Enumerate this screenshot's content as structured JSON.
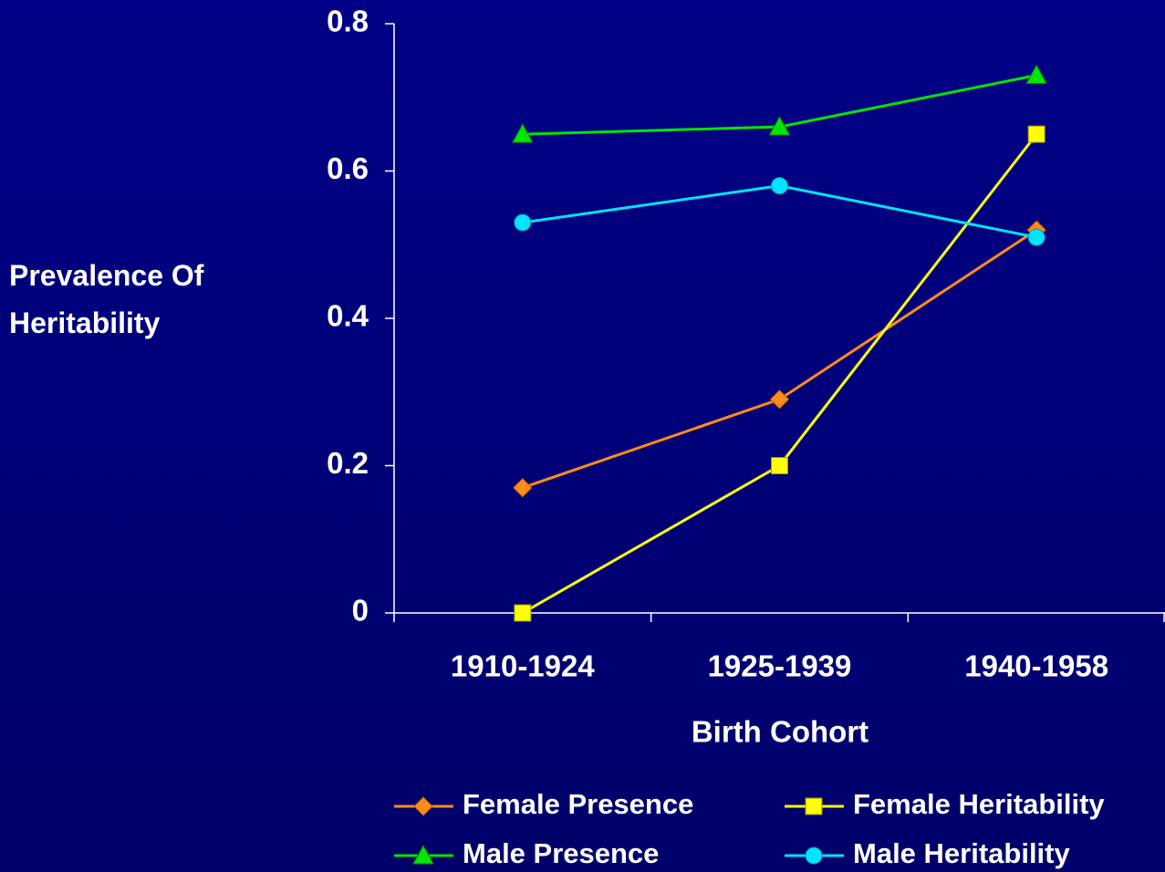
{
  "chart_data": {
    "type": "line",
    "xlabel": "Birth Cohort",
    "ylabel": "Prevalence Of Heritability",
    "categories": [
      "1910-1924",
      "1925-1939",
      "1940-1958"
    ],
    "ylim": [
      0,
      0.8
    ],
    "yticks": [
      0,
      0.2,
      0.4,
      0.6,
      0.8
    ],
    "legend": "bottom",
    "series": [
      {
        "name": "Female Presence",
        "color": "#ff8c1a",
        "marker": "diamond",
        "values": [
          0.17,
          0.29,
          0.52
        ]
      },
      {
        "name": "Female Heritability",
        "color": "#ffff00",
        "marker": "square",
        "values": [
          0,
          0.2,
          0.65
        ]
      },
      {
        "name": "Male Presence",
        "color": "#00e600",
        "marker": "triangle",
        "values": [
          0.65,
          0.66,
          0.73
        ]
      },
      {
        "name": "Male Heritability",
        "color": "#00e5ff",
        "marker": "circle",
        "values": [
          0.53,
          0.58,
          0.51
        ]
      }
    ]
  }
}
